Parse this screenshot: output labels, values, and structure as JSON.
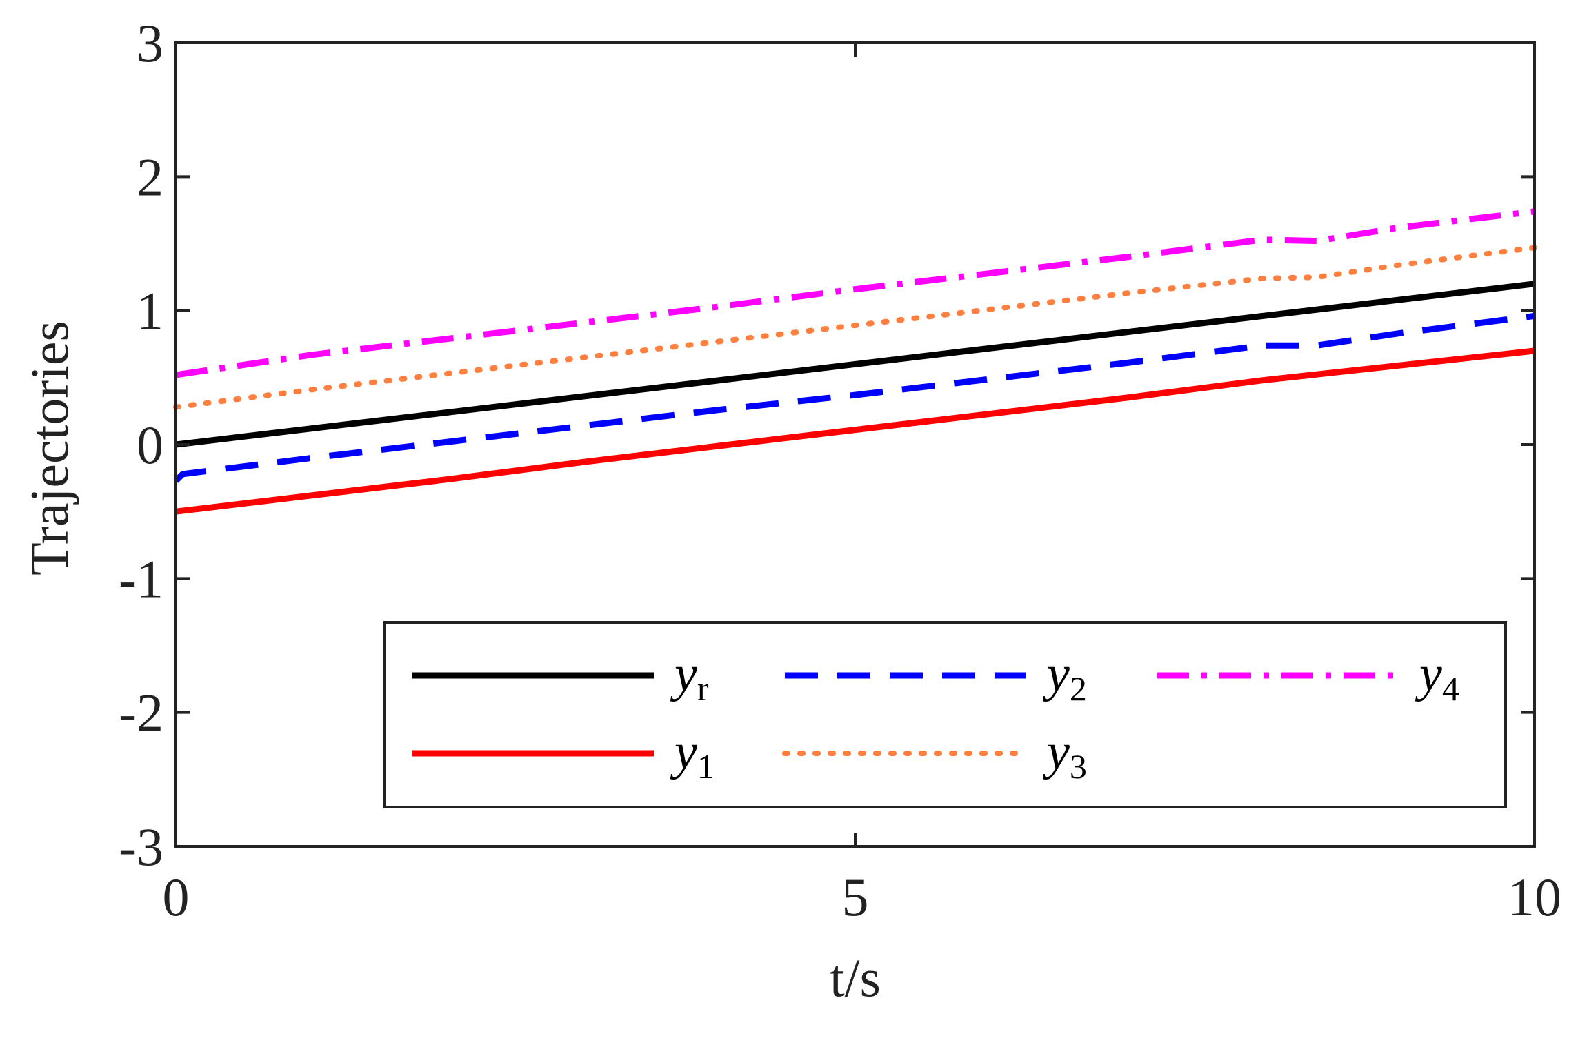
{
  "chart_data": {
    "type": "line",
    "xlabel": "t/s",
    "ylabel": "Trajectories",
    "xlim": [
      0,
      10
    ],
    "ylim": [
      -3,
      3
    ],
    "xticks": [
      0,
      5,
      10
    ],
    "xtick_labels": [
      "0",
      "5",
      "10"
    ],
    "yticks": [
      -3,
      -2,
      -1,
      0,
      1,
      2,
      3
    ],
    "ytick_labels": [
      "-3",
      "-2",
      "-1",
      "0",
      "1",
      "2",
      "3"
    ],
    "grid": false,
    "legend_position": "bottom-right",
    "legend_columns": 3,
    "series": [
      {
        "name": "y_r",
        "label_base": "y",
        "label_sub": "r",
        "color": "#000000",
        "style": "solid",
        "x": [
          0,
          10
        ],
        "y": [
          0.0,
          1.2
        ]
      },
      {
        "name": "y_1",
        "label_base": "y",
        "label_sub": "1",
        "color": "#ff0000",
        "style": "solid",
        "x": [
          0,
          1,
          2,
          3,
          4,
          5,
          6,
          7,
          8,
          9,
          10
        ],
        "y": [
          -0.5,
          -0.38,
          -0.26,
          -0.13,
          -0.01,
          0.11,
          0.23,
          0.35,
          0.48,
          0.59,
          0.7
        ]
      },
      {
        "name": "y_2",
        "label_base": "y",
        "label_sub": "2",
        "color": "#0000ff",
        "style": "dashed",
        "x": [
          0,
          0.05,
          1,
          2,
          3,
          4,
          5,
          6,
          7,
          8,
          8.4,
          9,
          10
        ],
        "y": [
          -0.27,
          -0.22,
          -0.1,
          0.02,
          0.14,
          0.26,
          0.37,
          0.49,
          0.61,
          0.74,
          0.74,
          0.83,
          0.96
        ]
      },
      {
        "name": "y_3",
        "label_base": "y",
        "label_sub": "3",
        "color": "#ff7f3f",
        "style": "dotted",
        "x": [
          0,
          1,
          2,
          3,
          4,
          5,
          6,
          7,
          8,
          8.4,
          9,
          10
        ],
        "y": [
          0.28,
          0.41,
          0.53,
          0.65,
          0.77,
          0.89,
          1.01,
          1.13,
          1.24,
          1.25,
          1.34,
          1.47
        ]
      },
      {
        "name": "y_4",
        "label_base": "y",
        "label_sub": "4",
        "color": "#ff00ff",
        "style": "dashdot",
        "x": [
          0,
          1,
          2,
          3,
          4,
          5,
          6,
          7,
          8,
          8.4,
          9,
          10
        ],
        "y": [
          0.52,
          0.67,
          0.79,
          0.91,
          1.03,
          1.16,
          1.28,
          1.4,
          1.53,
          1.52,
          1.62,
          1.74
        ]
      }
    ]
  }
}
